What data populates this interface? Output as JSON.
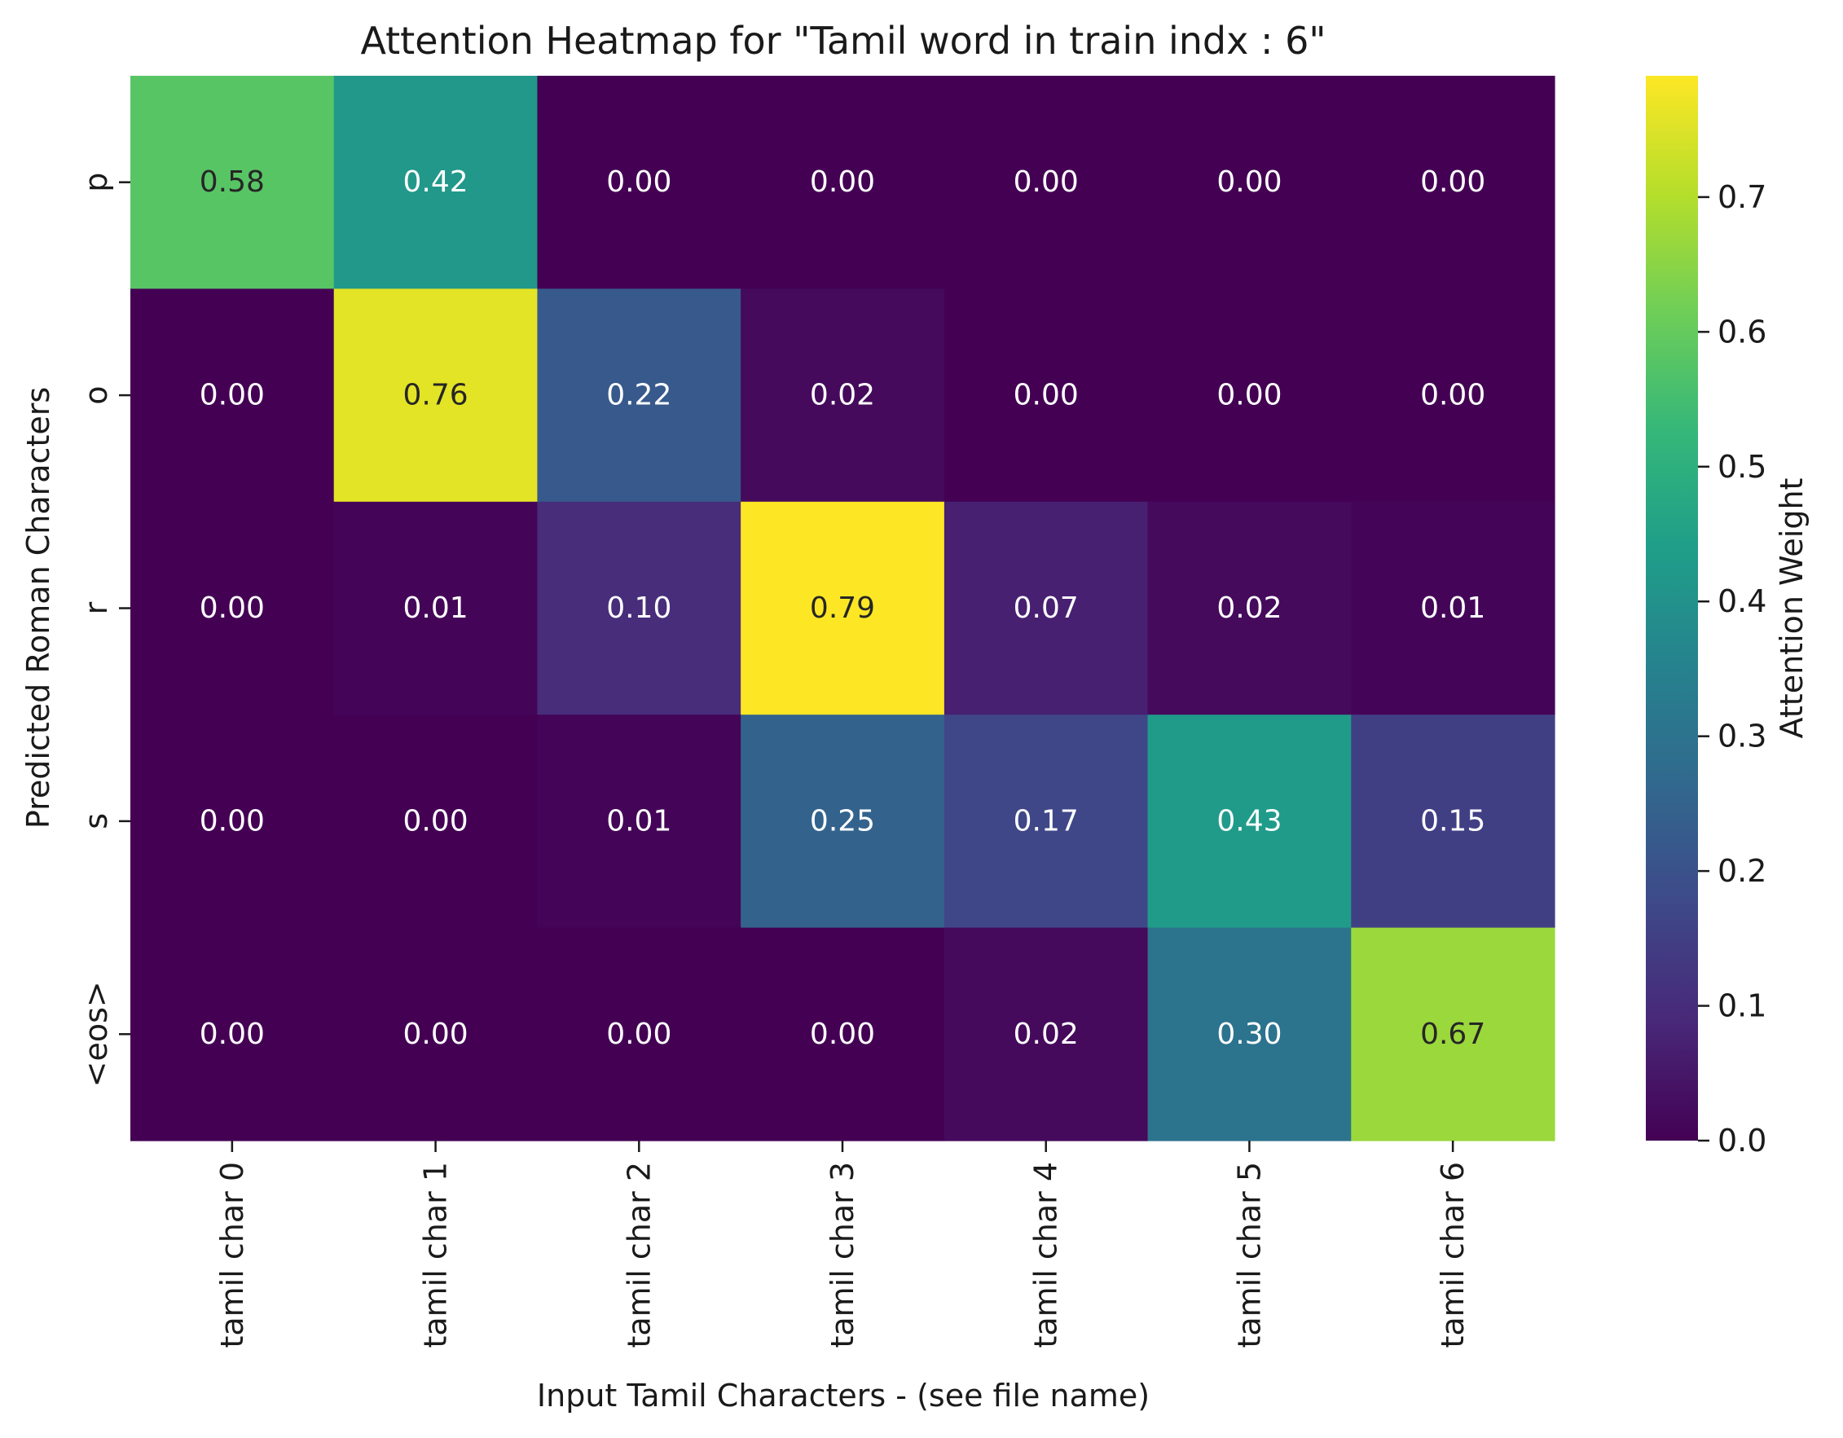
{
  "chart_data": {
    "type": "heatmap",
    "title": "Attention Heatmap for \"Tamil word  in train indx :  6\"",
    "xlabel": "Input Tamil Characters - (see file name)",
    "ylabel": "Predicted Roman Characters",
    "x_categories": [
      "tamil char 0",
      "tamil char 1",
      "tamil char 2",
      "tamil char 3",
      "tamil char 4",
      "tamil char 5",
      "tamil char 6"
    ],
    "y_categories": [
      "p",
      "o",
      "r",
      "s",
      "<eos>"
    ],
    "values": [
      [
        0.58,
        0.42,
        0.0,
        0.0,
        0.0,
        0.0,
        0.0
      ],
      [
        0.0,
        0.76,
        0.22,
        0.02,
        0.0,
        0.0,
        0.0
      ],
      [
        0.0,
        0.01,
        0.1,
        0.79,
        0.07,
        0.02,
        0.01
      ],
      [
        0.0,
        0.0,
        0.01,
        0.25,
        0.17,
        0.43,
        0.15
      ],
      [
        0.0,
        0.0,
        0.0,
        0.0,
        0.02,
        0.3,
        0.67
      ]
    ],
    "value_format": "0.00",
    "colormap": "viridis",
    "colorbar": {
      "label": "Attention Weight",
      "range": [
        0,
        0.79
      ],
      "ticks": [
        0.0,
        0.1,
        0.2,
        0.3,
        0.4,
        0.5,
        0.6,
        0.7
      ],
      "tick_labels": [
        "0.0",
        "0.1",
        "0.2",
        "0.3",
        "0.4",
        "0.5",
        "0.6",
        "0.7"
      ]
    },
    "grid": false
  }
}
